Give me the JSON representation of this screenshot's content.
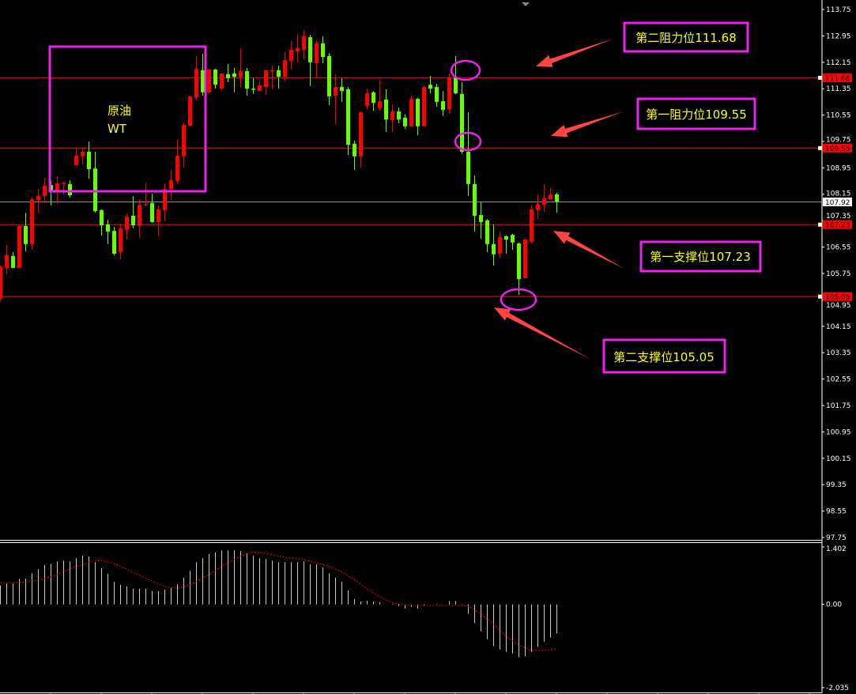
{
  "colors": {
    "background": "#000000",
    "bull": "#ff0000",
    "bear": "#66ff00",
    "level_line": "#ff0000",
    "bid_line": "#9a9a9a",
    "annotation_box": "#ee22ee",
    "annotation_text": "#ffff00",
    "arrow": "#ff4444",
    "axis": "#ffffff",
    "macd_hist": "#cccccc",
    "macd_signal": "#ff0000"
  },
  "chart_data": [
    {
      "type": "candlestick",
      "title": "",
      "y_axis": {
        "position": "right",
        "range": [
          97.75,
          113.75
        ],
        "ticks": [
          "113.75",
          "112.95",
          "112.15",
          "111.35",
          "110.55",
          "109.75",
          "108.95",
          "108.15",
          "107.35",
          "106.55",
          "105.75",
          "104.95",
          "104.15",
          "103.35",
          "102.55",
          "101.75",
          "100.95",
          "100.15",
          "99.35",
          "98.55",
          "97.75"
        ]
      },
      "grid": false,
      "candle_format": [
        "open",
        "high",
        "low",
        "close"
      ],
      "candles": [
        [
          104.98,
          105.99,
          104.91,
          105.97
        ],
        [
          105.92,
          106.61,
          105.73,
          106.3
        ],
        [
          106.28,
          106.4,
          105.92,
          105.92
        ],
        [
          105.92,
          107.24,
          105.92,
          107.19
        ],
        [
          107.19,
          107.59,
          106.42,
          106.64
        ],
        [
          106.64,
          108.07,
          106.47,
          108.0
        ],
        [
          107.98,
          108.31,
          107.59,
          108.1
        ],
        [
          108.1,
          108.65,
          107.88,
          108.41
        ],
        [
          108.43,
          108.55,
          107.81,
          108.24
        ],
        [
          108.24,
          108.7,
          107.86,
          108.48
        ],
        [
          108.46,
          108.53,
          108.15,
          108.5
        ],
        [
          108.46,
          108.58,
          108.05,
          108.12
        ],
        [
          109.03,
          109.56,
          109.01,
          109.32
        ],
        [
          109.3,
          109.54,
          109.06,
          109.44
        ],
        [
          109.44,
          109.75,
          108.62,
          108.91
        ],
        [
          108.93,
          109.44,
          107.59,
          107.64
        ],
        [
          107.67,
          107.69,
          106.9,
          107.21
        ],
        [
          107.24,
          107.38,
          106.64,
          107.02
        ],
        [
          107.04,
          107.16,
          106.3,
          106.35
        ],
        [
          106.4,
          107.26,
          106.18,
          107.12
        ],
        [
          107.07,
          107.57,
          106.78,
          107.47
        ],
        [
          107.5,
          108.1,
          107.12,
          107.21
        ],
        [
          107.21,
          108.0,
          106.83,
          107.83
        ],
        [
          107.83,
          108.5,
          107.79,
          107.85
        ],
        [
          107.88,
          108.17,
          107.29,
          107.31
        ],
        [
          107.31,
          107.81,
          106.88,
          107.69
        ],
        [
          107.67,
          108.48,
          107.33,
          108.31
        ],
        [
          108.31,
          108.89,
          107.98,
          108.58
        ],
        [
          108.55,
          109.8,
          108.46,
          109.32
        ],
        [
          109.3,
          110.32,
          108.96,
          110.25
        ],
        [
          110.23,
          111.12,
          110.2,
          111.12
        ],
        [
          111.09,
          112.34,
          111.0,
          111.95
        ],
        [
          111.91,
          112.41,
          111.14,
          111.24
        ],
        [
          111.24,
          111.95,
          111.21,
          111.93
        ],
        [
          111.93,
          111.95,
          111.35,
          111.47
        ],
        [
          111.35,
          111.81,
          111.28,
          111.81
        ],
        [
          111.79,
          112.1,
          111.55,
          111.67
        ],
        [
          111.81,
          111.98,
          111.24,
          111.71
        ],
        [
          111.71,
          112.58,
          111.38,
          111.88
        ],
        [
          111.88,
          111.98,
          111.14,
          111.35
        ],
        [
          111.35,
          111.67,
          111.19,
          111.33
        ],
        [
          111.28,
          111.59,
          111.28,
          111.45
        ],
        [
          111.4,
          111.91,
          111.16,
          111.91
        ],
        [
          111.9,
          112.05,
          111.33,
          111.91
        ],
        [
          111.91,
          112.05,
          111.35,
          111.71
        ],
        [
          111.71,
          112.46,
          111.57,
          112.22
        ],
        [
          112.19,
          112.79,
          111.93,
          112.53
        ],
        [
          112.48,
          113.01,
          112.15,
          112.58
        ],
        [
          112.53,
          113.13,
          112.24,
          112.94
        ],
        [
          112.91,
          112.98,
          111.43,
          112.15
        ],
        [
          112.12,
          112.82,
          111.67,
          112.72
        ],
        [
          112.72,
          112.94,
          112.12,
          112.31
        ],
        [
          112.34,
          112.43,
          110.85,
          111.12
        ],
        [
          111.14,
          111.79,
          110.28,
          111.4
        ],
        [
          111.4,
          111.67,
          110.95,
          111.28
        ],
        [
          111.33,
          111.4,
          109.34,
          109.65
        ],
        [
          109.68,
          109.77,
          108.89,
          109.3
        ],
        [
          109.3,
          110.64,
          108.96,
          110.64
        ],
        [
          110.83,
          111.35,
          110.71,
          111.21
        ],
        [
          111.24,
          111.28,
          110.68,
          110.92
        ],
        [
          110.76,
          111.62,
          110.68,
          110.97
        ],
        [
          111.02,
          111.33,
          110.04,
          110.42
        ],
        [
          110.4,
          110.88,
          110.04,
          110.66
        ],
        [
          110.66,
          110.78,
          110.3,
          110.42
        ],
        [
          110.47,
          110.57,
          110.13,
          110.21
        ],
        [
          110.21,
          111.14,
          110.18,
          111.04
        ],
        [
          111.04,
          111.07,
          109.94,
          110.21
        ],
        [
          110.21,
          111.45,
          110.21,
          111.4
        ],
        [
          111.47,
          111.74,
          111.21,
          111.35
        ],
        [
          111.4,
          111.5,
          110.8,
          110.95
        ],
        [
          110.97,
          111.28,
          110.52,
          110.71
        ],
        [
          110.73,
          111.81,
          110.59,
          111.69
        ],
        [
          111.69,
          112.34,
          111.19,
          111.21
        ],
        [
          111.19,
          111.55,
          109.37,
          109.44
        ],
        [
          109.44,
          110.64,
          108.1,
          108.46
        ],
        [
          108.46,
          108.72,
          107.02,
          107.5
        ],
        [
          107.52,
          107.91,
          106.8,
          107.31
        ],
        [
          107.36,
          107.4,
          106.4,
          106.64
        ],
        [
          106.64,
          107.24,
          105.99,
          106.33
        ],
        [
          106.35,
          107.02,
          106.23,
          106.85
        ],
        [
          106.88,
          106.9,
          106.35,
          106.78
        ],
        [
          106.92,
          106.95,
          106.47,
          106.69
        ],
        [
          106.66,
          106.69,
          105.1,
          105.58
        ],
        [
          105.61,
          106.8,
          105.61,
          106.78
        ],
        [
          106.71,
          107.83,
          106.66,
          107.69
        ],
        [
          107.67,
          108.15,
          107.4,
          107.86
        ],
        [
          107.83,
          108.46,
          107.62,
          108.03
        ],
        [
          108.0,
          108.36,
          107.98,
          108.15
        ],
        [
          108.15,
          108.2,
          107.59,
          107.92
        ]
      ],
      "price_labels": [
        {
          "value": "111.68",
          "style": "level"
        },
        {
          "value": "109.55",
          "style": "level"
        },
        {
          "value": "107.92",
          "style": "bid"
        },
        {
          "value": "107.23",
          "style": "level"
        },
        {
          "value": "105.05",
          "style": "level"
        }
      ],
      "horizontal_lines": [
        111.68,
        109.55,
        107.92,
        107.23,
        105.05
      ],
      "annotations": {
        "box_label_line1": "原油",
        "box_label_line2": "WT",
        "resistance2": "第二阻力位111.68",
        "resistance1": "第一阻力位109.55",
        "support1": "第一支撑位107.23",
        "support2": "第二支撑位105.05"
      }
    },
    {
      "type": "bar",
      "indicator": "macd",
      "y_axis": {
        "position": "right",
        "range": [
          -2.035,
          1.402
        ],
        "ticks": [
          "1.402",
          "0.00",
          "-2.035"
        ]
      },
      "histogram": [
        0.46,
        0.51,
        0.51,
        0.62,
        0.63,
        0.76,
        0.86,
        0.96,
        0.99,
        1.05,
        1.07,
        1.05,
        1.13,
        1.19,
        1.17,
        1.03,
        0.88,
        0.75,
        0.55,
        0.48,
        0.44,
        0.38,
        0.38,
        0.38,
        0.32,
        0.32,
        0.36,
        0.4,
        0.49,
        0.65,
        0.82,
        1.03,
        1.13,
        1.23,
        1.27,
        1.32,
        1.32,
        1.32,
        1.3,
        1.25,
        1.19,
        1.13,
        1.11,
        1.07,
        1.03,
        1.03,
        1.03,
        1.03,
        1.05,
        0.98,
        0.98,
        0.9,
        0.76,
        0.65,
        0.55,
        0.34,
        0.13,
        0.07,
        0.09,
        0.07,
        0.05,
        0.0,
        0.01,
        -0.04,
        -0.1,
        -0.06,
        -0.1,
        -0.03,
        0.0,
        0.01,
        0.0,
        0.08,
        0.08,
        0.01,
        -0.23,
        -0.46,
        -0.66,
        -0.85,
        -1.02,
        -1.1,
        -1.16,
        -1.2,
        -1.29,
        -1.27,
        -1.16,
        -1.04,
        -0.91,
        -0.81,
        -0.71
      ],
      "signal": [
        0.53,
        0.53,
        0.53,
        0.54,
        0.55,
        0.57,
        0.59,
        0.63,
        0.67,
        0.73,
        0.8,
        0.87,
        0.93,
        0.98,
        1.03,
        1.07,
        1.07,
        1.04,
        0.99,
        0.93,
        0.86,
        0.78,
        0.71,
        0.64,
        0.57,
        0.5,
        0.44,
        0.41,
        0.39,
        0.43,
        0.48,
        0.56,
        0.64,
        0.73,
        0.83,
        0.93,
        1.02,
        1.1,
        1.18,
        1.23,
        1.27,
        1.26,
        1.25,
        1.21,
        1.18,
        1.15,
        1.13,
        1.11,
        1.09,
        1.05,
        1.02,
        0.97,
        0.93,
        0.86,
        0.8,
        0.7,
        0.6,
        0.49,
        0.38,
        0.28,
        0.19,
        0.11,
        0.04,
        0.01,
        -0.01,
        -0.02,
        -0.03,
        -0.03,
        -0.03,
        -0.03,
        -0.03,
        -0.02,
        -0.02,
        -0.03,
        -0.05,
        -0.13,
        -0.23,
        -0.36,
        -0.49,
        -0.63,
        -0.78,
        -0.89,
        -1.0,
        -1.06,
        -1.12,
        -1.13,
        -1.13,
        -1.11,
        -1.08
      ]
    }
  ]
}
